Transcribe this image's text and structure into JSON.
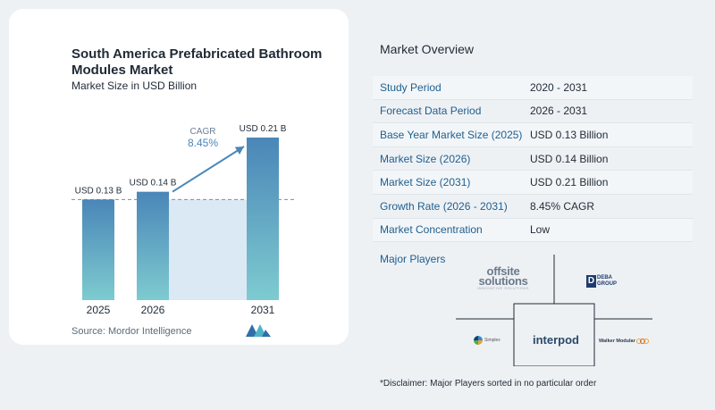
{
  "chart_data": {
    "type": "bar",
    "title": "South America Prefabricated Bathroom Modules Market",
    "subtitle": "Market Size in USD Billion",
    "categories": [
      "2025",
      "2026",
      "2031"
    ],
    "values": [
      0.13,
      0.14,
      0.21
    ],
    "data_labels": [
      "USD 0.13 B",
      "USD 0.14 B",
      "USD 0.21 B"
    ],
    "cagr_label": "CAGR",
    "cagr_value": "8.45%",
    "ylim": [
      0,
      0.21
    ],
    "colors": {
      "bar_top": "#4a86b8",
      "bar_bottom": "#7ecbd0",
      "bg_band": "#dbe9f5",
      "arrow": "#4a86b8",
      "dashed": "#7a8e9f"
    }
  },
  "source_text": "Source:",
  "source_name": "Mordor Intelligence",
  "overview": {
    "title": "Market Overview",
    "rows": [
      {
        "label": "Study Period",
        "value": "2020 - 2031"
      },
      {
        "label": "Forecast Data Period",
        "value": "2026 - 2031"
      },
      {
        "label": "Base Year Market Size (2025)",
        "value": "USD 0.13 Billion"
      },
      {
        "label": "Market Size (2026)",
        "value": "USD 0.14 Billion"
      },
      {
        "label": "Market Size (2031)",
        "value": "USD 0.21 Billion"
      },
      {
        "label": "Growth Rate (2026 - 2031)",
        "value": "8.45% CAGR"
      },
      {
        "label": "Market Concentration",
        "value": "Low"
      }
    ]
  },
  "players": {
    "title": "Major Players",
    "offsite_big": "offsite",
    "offsite_big2": "solutions",
    "offsite_tag": "INNOVATIVE SOLUTIONS",
    "deba_mark": "D",
    "deba_text1": "DEBA",
    "deba_text2": "GROUP",
    "simplex_text": "Simplex",
    "interpod_text": "interpod",
    "walker_text": "Walker Modular"
  },
  "disclaimer": "*Disclaimer: Major Players sorted in no particular order"
}
